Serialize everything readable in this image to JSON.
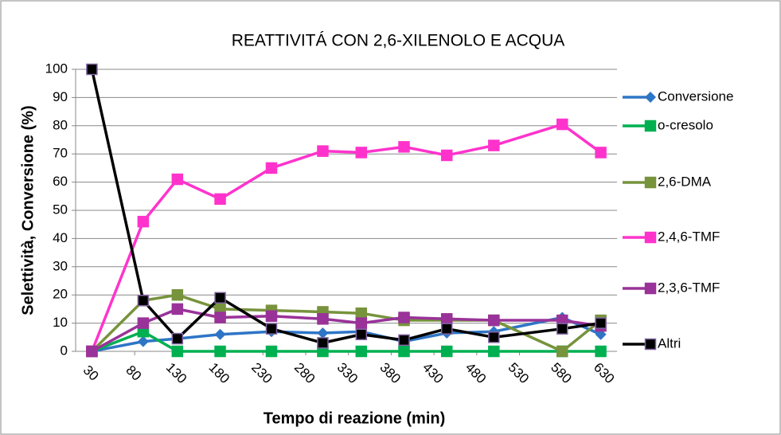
{
  "chart_data": {
    "type": "line",
    "title": "REATTIVITÁ CON 2,6-XILENOLO E ACQUA",
    "x_label": "Tempo di reazione (min)",
    "y_label": "Selettività, Conversione (%)",
    "x": [
      30,
      90,
      130,
      180,
      240,
      300,
      345,
      395,
      445,
      500,
      580,
      625
    ],
    "series": [
      {
        "name": "Conversione",
        "color": "#2e75c6",
        "marker": "diamond",
        "values": [
          0,
          3.5,
          4.5,
          6,
          7,
          6.5,
          7,
          3.5,
          6.5,
          7,
          12,
          6
        ]
      },
      {
        "name": "o-cresolo",
        "color": "#00b050",
        "marker": "square",
        "values": [
          0,
          7,
          0,
          0,
          0,
          0,
          0,
          0,
          0,
          0,
          0,
          0
        ]
      },
      {
        "name": "2,6-DMA",
        "color": "#77933c",
        "marker": "square",
        "values": [
          0,
          18,
          20,
          15,
          14.5,
          14,
          13.5,
          11,
          11,
          11,
          0,
          11
        ]
      },
      {
        "name": "2,4,6-TMF",
        "color": "#ff33cc",
        "marker": "square",
        "values": [
          0,
          46,
          61,
          54,
          65,
          71,
          70.5,
          72.5,
          69.5,
          73,
          80.5,
          70.5
        ]
      },
      {
        "name": "2,3,6-TMF",
        "color": "#993399",
        "marker": "square",
        "values": [
          0,
          10,
          15,
          12,
          12.5,
          11.5,
          10,
          12,
          11.5,
          11,
          11,
          9
        ]
      },
      {
        "name": "Altri",
        "color": "#000000",
        "marker": "square",
        "values": [
          100,
          18,
          4.5,
          19,
          8,
          3,
          6,
          4,
          8,
          5,
          8,
          10
        ]
      }
    ],
    "xlim": [
      11,
      644
    ],
    "xticks": [
      30,
      80,
      130,
      180,
      230,
      280,
      330,
      380,
      430,
      480,
      530,
      580,
      630
    ],
    "ylim": [
      0,
      100
    ],
    "yticks": [
      0,
      10,
      20,
      30,
      40,
      50,
      60,
      70,
      80,
      90,
      100
    ],
    "grid": true,
    "legend": "right"
  }
}
